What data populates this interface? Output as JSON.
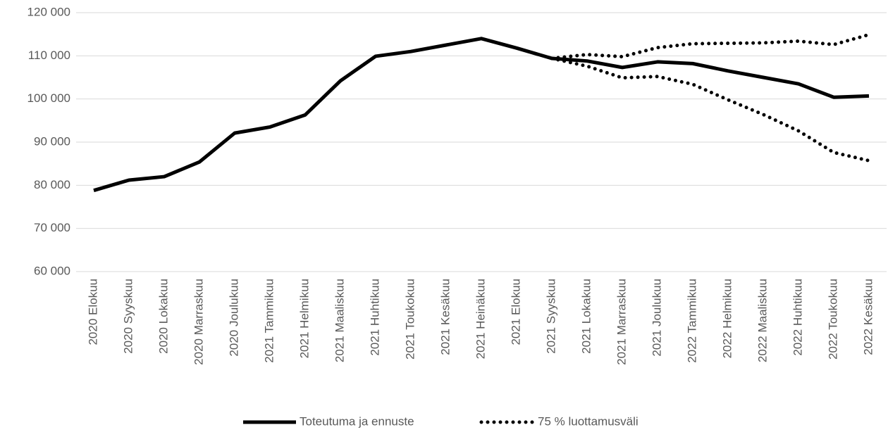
{
  "chart_data": {
    "type": "line",
    "categories": [
      "2020 Elokuu",
      "2020 Syyskuu",
      "2020 Lokakuu",
      "2020 Marraskuu",
      "2020 Joulukuu",
      "2021 Tammikuu",
      "2021 Helmikuu",
      "2021 Maaliskuu",
      "2021 Huhtikuu",
      "2021 Toukokuu",
      "2021 Kesäkuu",
      "2021 Heinäkuu",
      "2021 Elokuu",
      "2021 Syyskuu",
      "2021 Lokakuu",
      "2021 Marraskuu",
      "2021 Joulukuu",
      "2022 Tammikuu",
      "2022 Helmikuu",
      "2022 Maaliskuu",
      "2022 Huhtikuu",
      "2022 Toukokuu",
      "2022 Kesäkuu"
    ],
    "series": [
      {
        "name": "Toteutuma ja ennuste",
        "color": "#000000",
        "style": "solid",
        "values": [
          78800,
          81200,
          82000,
          85400,
          92100,
          93500,
          96300,
          104200,
          109900,
          111000,
          112500,
          114000,
          111800,
          109400,
          108800,
          107300,
          108600,
          108200,
          106500,
          105000,
          103500,
          100400,
          100700
        ]
      },
      {
        "name": "75 % luottamusväli",
        "color": "#000000",
        "style": "dotted",
        "values": [
          null,
          null,
          null,
          null,
          null,
          null,
          null,
          null,
          null,
          null,
          null,
          null,
          null,
          109400,
          110300,
          109800,
          111900,
          112800,
          112900,
          113000,
          113400,
          112600,
          114900
        ],
        "lower": [
          null,
          null,
          null,
          null,
          null,
          null,
          null,
          null,
          null,
          null,
          null,
          null,
          null,
          109400,
          107600,
          104900,
          105200,
          103400,
          99800,
          96400,
          92600,
          87600,
          85700
        ]
      }
    ],
    "ylim": [
      60000,
      120000
    ],
    "yticks": [
      {
        "value": 60000,
        "label": "60 000"
      },
      {
        "value": 70000,
        "label": "70 000"
      },
      {
        "value": 80000,
        "label": "80 000"
      },
      {
        "value": 90000,
        "label": "90 000"
      },
      {
        "value": 100000,
        "label": "100 000"
      },
      {
        "value": 110000,
        "label": "110 000"
      },
      {
        "value": 120000,
        "label": "120 000"
      }
    ],
    "grid": true,
    "legend": "bottom"
  }
}
